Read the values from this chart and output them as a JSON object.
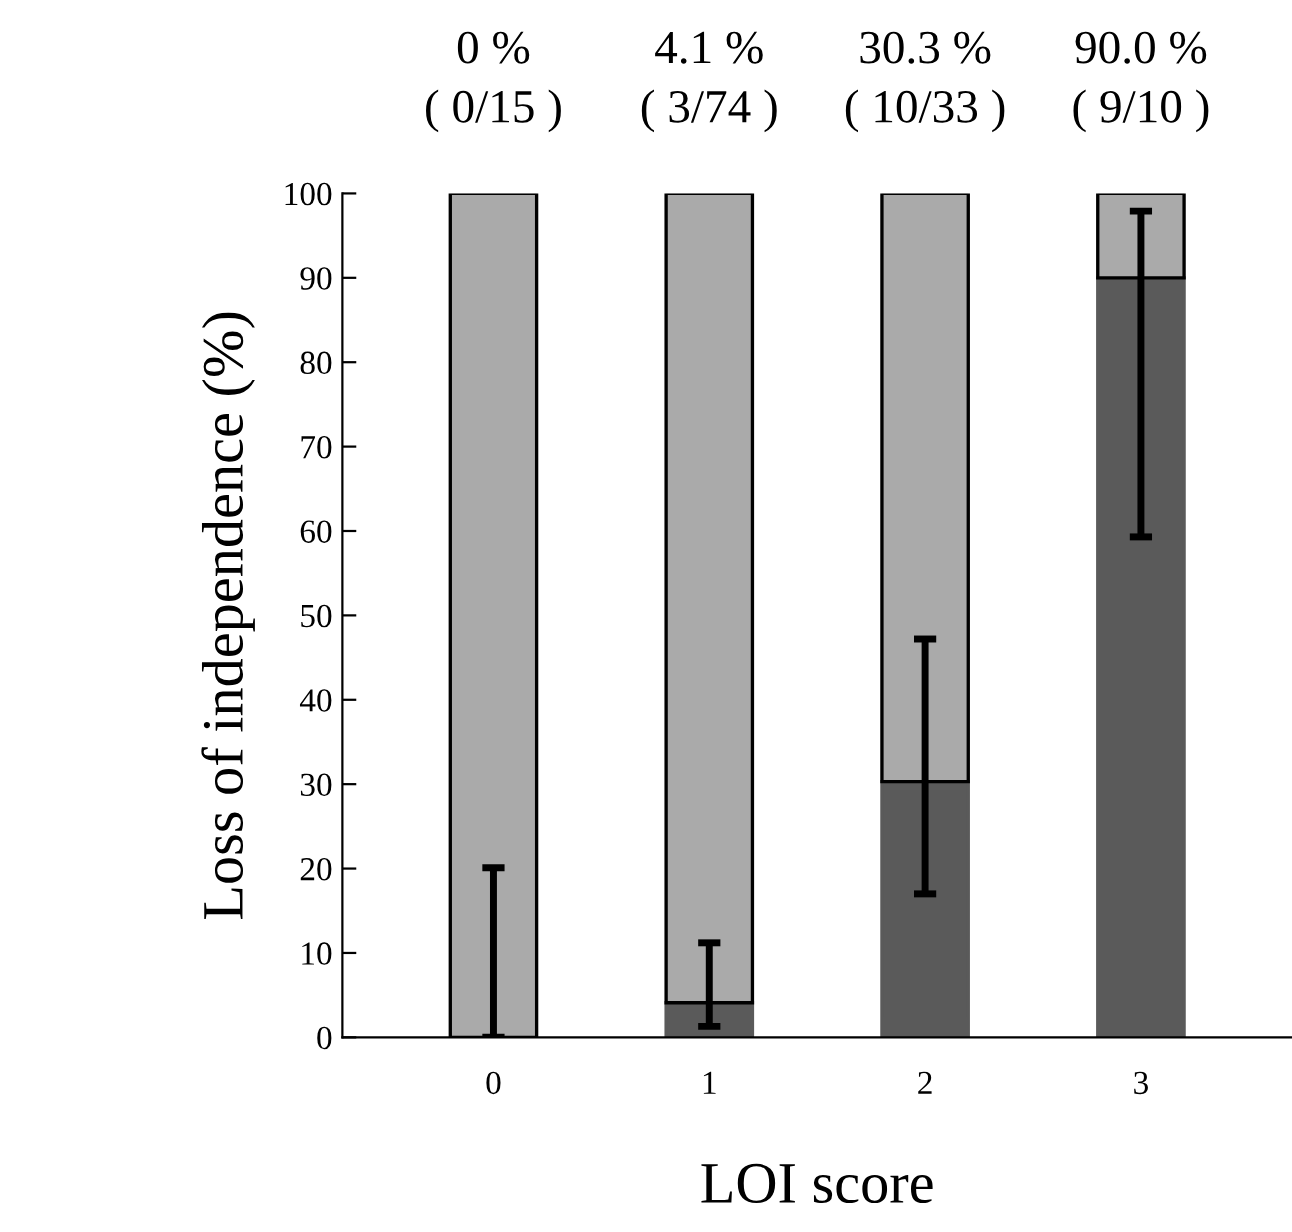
{
  "chart_data": {
    "type": "bar",
    "xlabel": "LOI score",
    "ylabel": "Loss of independence (%)",
    "categories": [
      "0",
      "1",
      "2",
      "3"
    ],
    "stacked": true,
    "ylim": [
      0,
      100
    ],
    "yticks": [
      0,
      10,
      20,
      30,
      40,
      50,
      60,
      70,
      80,
      90,
      100
    ],
    "grid": false,
    "legend": false,
    "series": [
      {
        "color": "#5a5a5a",
        "values": [
          0,
          4.1,
          30.3,
          90.0
        ],
        "errors": [
          [
            0,
            20.1
          ],
          [
            1.3,
            11.2
          ],
          [
            17.0,
            47.2
          ],
          [
            59.3,
            97.9
          ]
        ],
        "value_labels": [
          "0 %\n( 0/15 )",
          "4.1 %\n( 3/74 )",
          "30.3 %\n( 10/33 )",
          "90.0 %\n( 9/10 )"
        ]
      },
      {
        "color": "#aaaaaa",
        "values": [
          100,
          95.9,
          69.7,
          10.0
        ]
      }
    ]
  }
}
